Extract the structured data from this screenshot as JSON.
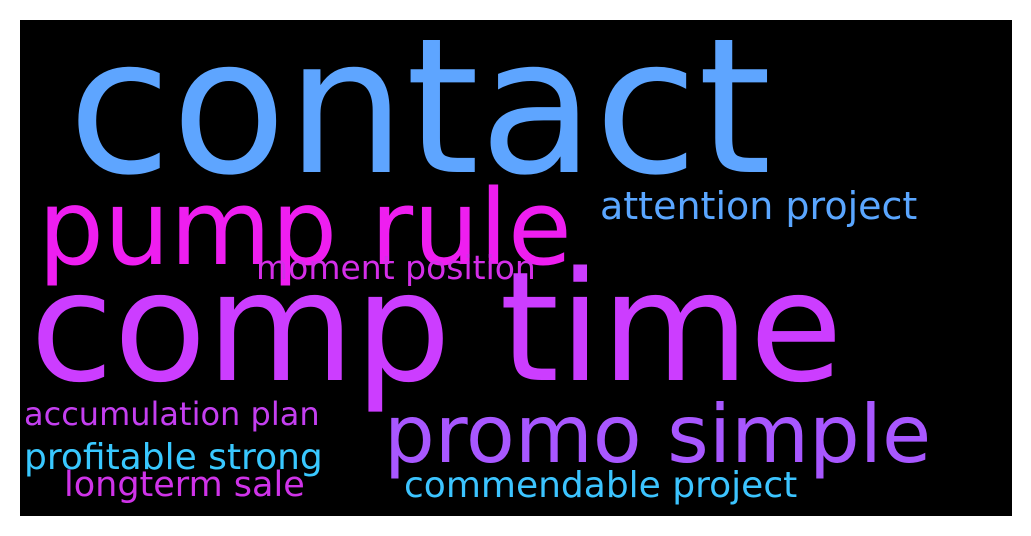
{
  "background_color": "#000000",
  "words": {
    "contact": {
      "text": "contact",
      "color": "#5ea5ff"
    },
    "comp_time": {
      "text": "comp time",
      "color": "#cc3dff"
    },
    "pump_rule": {
      "text": "pump rule",
      "color": "#ee1ef0"
    },
    "promo_simple": {
      "text": "promo simple",
      "color": "#a857ff"
    },
    "attention": {
      "text": "attention project",
      "color": "#5aa6ff"
    },
    "moment": {
      "text": "moment position",
      "color": "#d42ee8"
    },
    "accumulation": {
      "text": "accumulation plan",
      "color": "#c43ff0"
    },
    "profitable": {
      "text": "profitable strong",
      "color": "#39c8ff"
    },
    "longterm": {
      "text": "longterm sale",
      "color": "#cf33e8"
    },
    "commendable": {
      "text": "commendable project",
      "color": "#3cc4ff"
    }
  }
}
